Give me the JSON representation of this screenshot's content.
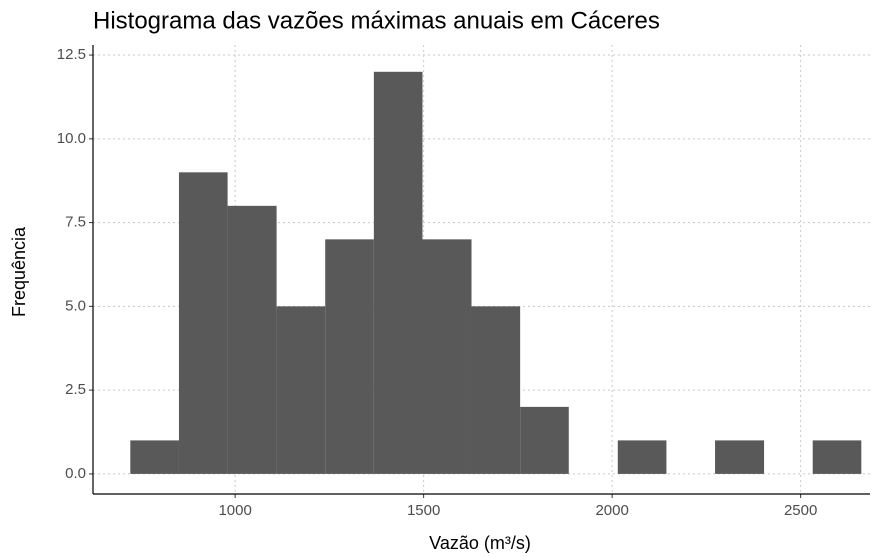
{
  "chart_data": {
    "type": "histogram",
    "title": "Histograma das vazões máximas anuais em Cáceres",
    "x_label": "Vazão (m³/s)",
    "y_label": "Frequência",
    "bins": [
      722,
      851,
      980,
      1110,
      1239,
      1368,
      1497,
      1627,
      1756,
      1885,
      2015,
      2144,
      2273,
      2403,
      2532,
      2661
    ],
    "values": [
      1,
      9,
      8,
      5,
      7,
      12,
      7,
      5,
      2,
      0,
      1,
      0,
      1,
      0,
      1
    ],
    "color": "#595959",
    "xlim": [
      623,
      2684
    ],
    "xticks": [
      1000,
      1500,
      2000,
      2500
    ],
    "ylim": [
      -0.6,
      12.8
    ],
    "yticks": [
      {
        "value": 0,
        "label": "0.0"
      },
      {
        "value": 2.5,
        "label": "2.5"
      },
      {
        "value": 5,
        "label": "5.0"
      },
      {
        "value": 7.5,
        "label": "7.5"
      },
      {
        "value": 10,
        "label": "10.0"
      },
      {
        "value": 12.5,
        "label": "12.5"
      }
    ],
    "grid": true
  }
}
